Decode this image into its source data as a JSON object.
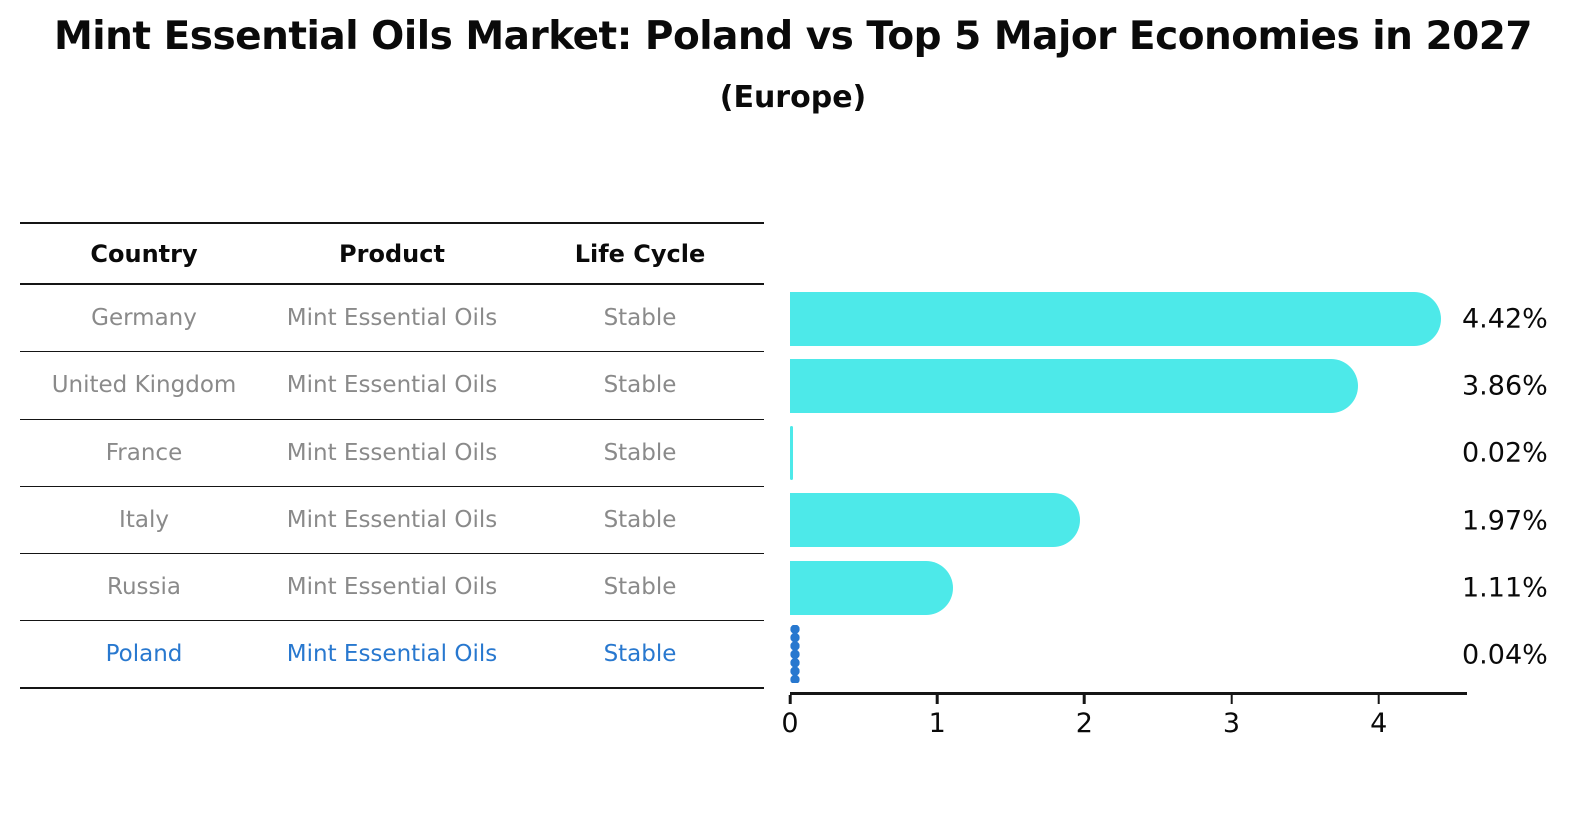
{
  "title": "Mint Essential Oils Market: Poland vs Top 5 Major Economies in 2027",
  "subtitle": "(Europe)",
  "table": {
    "headers": [
      "Country",
      "Product",
      "Life Cycle"
    ],
    "rows": [
      {
        "country": "Germany",
        "product": "Mint Essential Oils",
        "life_cycle": "Stable",
        "highlight": false
      },
      {
        "country": "United Kingdom",
        "product": "Mint Essential Oils",
        "life_cycle": "Stable",
        "highlight": false
      },
      {
        "country": "France",
        "product": "Mint Essential Oils",
        "life_cycle": "Stable",
        "highlight": false
      },
      {
        "country": "Italy",
        "product": "Mint Essential Oils",
        "life_cycle": "Stable",
        "highlight": false
      },
      {
        "country": "Russia",
        "product": "Mint Essential Oils",
        "life_cycle": "Stable",
        "highlight": false
      },
      {
        "country": "Poland",
        "product": "Mint Essential Oils",
        "life_cycle": "Stable",
        "highlight": true
      }
    ]
  },
  "chart_data": {
    "type": "bar",
    "orientation": "horizontal",
    "title": "Mint Essential Oils Market: Poland vs Top 5 Major Economies in 2027 (Europe)",
    "categories": [
      "Germany",
      "United Kingdom",
      "France",
      "Italy",
      "Russia",
      "Poland"
    ],
    "values": [
      4.42,
      3.86,
      0.02,
      1.97,
      1.11,
      0.04
    ],
    "value_labels": [
      "4.42%",
      "3.86%",
      "0.02%",
      "1.97%",
      "1.11%",
      "0.04%"
    ],
    "xlim": [
      0,
      4.6
    ],
    "x_ticks": [
      0,
      1,
      2,
      3,
      4
    ],
    "x_tick_labels": [
      "0",
      "1",
      "2",
      "3",
      "4"
    ],
    "grid": false,
    "legend": false,
    "bar_color": "#4de9e9",
    "highlight_color": "#2878cf",
    "highlight_index": 5,
    "highlight_style": "dotted"
  },
  "colors": {
    "bar": "#4de9e9",
    "highlight": "#2878cf",
    "row_text": "#8a8a8a",
    "header_text": "#0a0a0a",
    "line": "#151515"
  }
}
